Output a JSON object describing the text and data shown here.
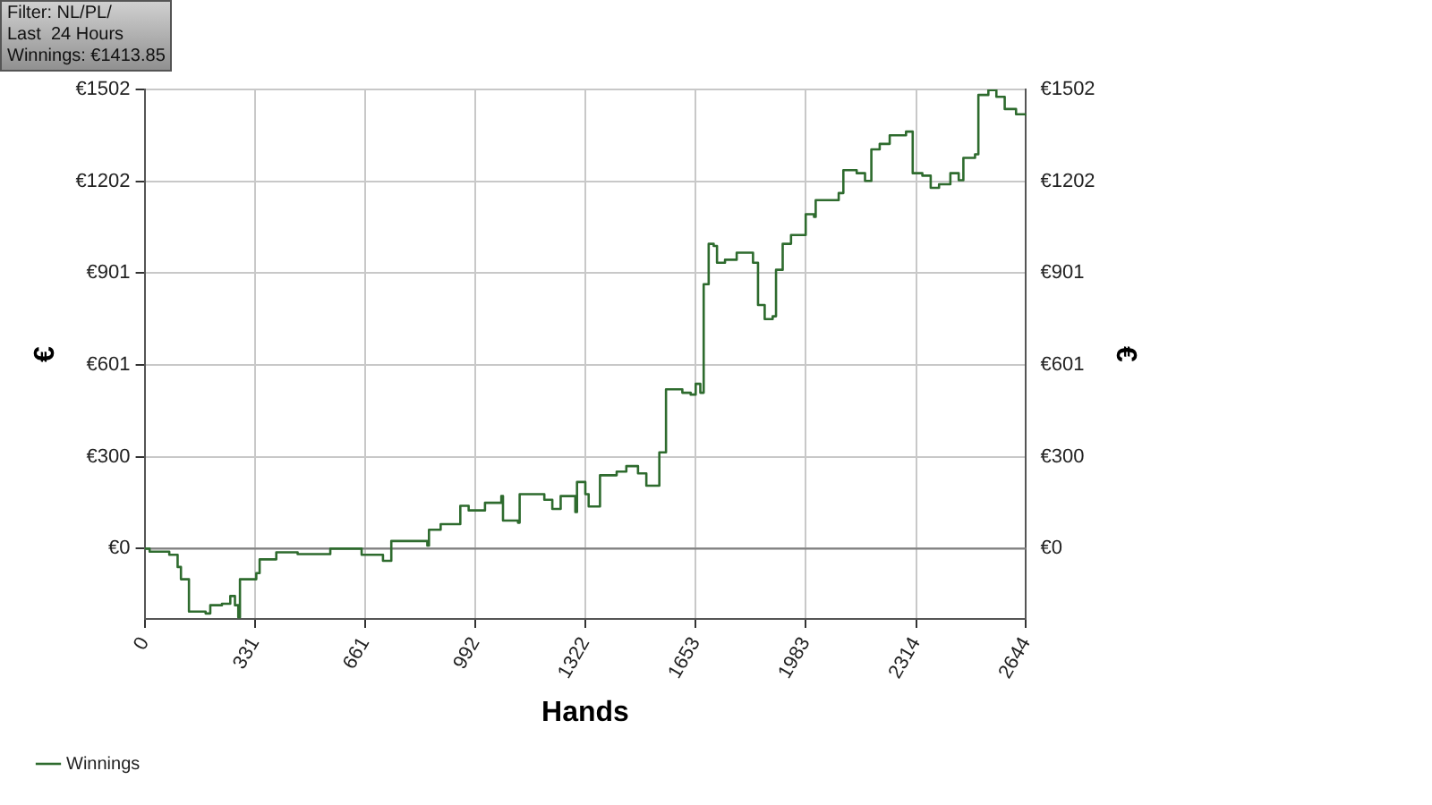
{
  "chart_data": {
    "type": "step",
    "xlabel": "Hands",
    "ylabel": "€",
    "y2label": "€",
    "annotations": [
      "Filter: NL/PL/",
      "Last  24 Hours",
      "Winnings: €1413.85"
    ],
    "x": [
      0,
      15,
      74,
      99,
      109,
      133,
      183,
      197,
      232,
      257,
      271,
      281,
      286,
      335,
      345,
      395,
      459,
      557,
      626,
      651,
      715,
      740,
      789,
      848,
      853,
      888,
      937,
      947,
      972,
      1021,
      1070,
      1075,
      1120,
      1125,
      1199,
      1223,
      1248,
      1292,
      1297,
      1322,
      1332,
      1357,
      1366,
      1416,
      1445,
      1480,
      1505,
      1539,
      1544,
      1564,
      1613,
      1638,
      1653,
      1667,
      1677,
      1692,
      1707,
      1717,
      1741,
      1776,
      1825,
      1840,
      1860,
      1884,
      1894,
      1914,
      1939,
      1963,
      1983,
      2008,
      2013,
      2082,
      2096,
      2136,
      2161,
      2180,
      2205,
      2235,
      2284,
      2304,
      2333,
      2358,
      2383,
      2417,
      2442,
      2456,
      2491,
      2501,
      2531,
      2555,
      2580,
      2614,
      2644
    ],
    "series": [
      {
        "name": "Winnings",
        "color": "#2e6b2e",
        "values": [
          0,
          -10,
          -20,
          -60,
          -100,
          -206,
          -212,
          -185,
          -180,
          -155,
          -185,
          -225,
          -100,
          -80,
          -35,
          -12,
          -18,
          0,
          0,
          -20,
          -40,
          25,
          25,
          10,
          62,
          80,
          80,
          140,
          125,
          150,
          172,
          92,
          85,
          178,
          160,
          130,
          172,
          120,
          218,
          178,
          138,
          138,
          240,
          252,
          270,
          246,
          206,
          206,
          315,
          521,
          510,
          504,
          539,
          510,
          865,
          997,
          990,
          935,
          945,
          968,
          935,
          797,
          751,
          760,
          912,
          997,
          1026,
          1026,
          1094,
          1085,
          1140,
          1163,
          1238,
          1228,
          1203,
          1306,
          1324,
          1352,
          1364,
          1228,
          1220,
          1180,
          1192,
          1228,
          1205,
          1278,
          1290,
          1484,
          1500,
          1478,
          1438,
          1421,
          1414
        ]
      }
    ],
    "xlim": [
      0,
      2644
    ],
    "xticks": [
      0,
      331,
      661,
      992,
      1322,
      1653,
      1983,
      2314,
      2644
    ],
    "ylim": [
      -230,
      1502
    ],
    "yticks": [
      {
        "value": 0,
        "label": "€0"
      },
      {
        "value": 300,
        "label": "€300"
      },
      {
        "value": 601,
        "label": "€601"
      },
      {
        "value": 901,
        "label": "€901"
      },
      {
        "value": 1202,
        "label": "€1202"
      },
      {
        "value": 1502,
        "label": "€1502"
      }
    ],
    "y2lim": [
      -230,
      1502
    ],
    "y2ticks": [
      {
        "value": 0,
        "label": "€0"
      },
      {
        "value": 300,
        "label": "€300"
      },
      {
        "value": 601,
        "label": "€601"
      },
      {
        "value": 901,
        "label": "€901"
      },
      {
        "value": 1202,
        "label": "€1202"
      },
      {
        "value": 1502,
        "label": "€1502"
      }
    ],
    "ref_lines": [
      {
        "axis": "y",
        "value": 0,
        "color": "#808080"
      }
    ],
    "grid": true,
    "legend": "bottom left",
    "marker": "none",
    "line_style": "solid"
  }
}
